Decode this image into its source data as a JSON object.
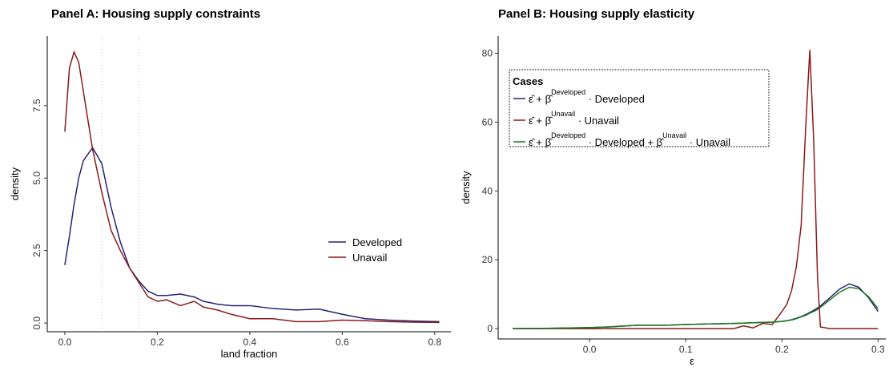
{
  "chart_data": [
    {
      "type": "line",
      "title": "Panel A: Housing supply constraints",
      "x_label": "land fraction",
      "y_label": "density",
      "x": [
        0,
        0.01,
        0.02,
        0.03,
        0.04,
        0.06,
        0.08,
        0.1,
        0.12,
        0.14,
        0.16,
        0.18,
        0.2,
        0.22,
        0.25,
        0.28,
        0.3,
        0.33,
        0.36,
        0.4,
        0.45,
        0.5,
        0.55,
        0.6,
        0.65,
        0.7,
        0.75,
        0.81
      ],
      "series": [
        {
          "name": "Developed",
          "color": "#23237a",
          "values": [
            2.0,
            3.0,
            4.1,
            5.0,
            5.6,
            6.05,
            5.5,
            4.0,
            2.8,
            1.9,
            1.45,
            1.1,
            0.95,
            0.95,
            1.0,
            0.9,
            0.75,
            0.65,
            0.6,
            0.6,
            0.5,
            0.45,
            0.48,
            0.3,
            0.15,
            0.1,
            0.07,
            0.05
          ]
        },
        {
          "name": "Unavail",
          "color": "#8b1a1a",
          "values": [
            6.6,
            8.8,
            9.35,
            9.0,
            8.0,
            6.0,
            4.5,
            3.2,
            2.5,
            1.9,
            1.4,
            0.9,
            0.75,
            0.8,
            0.6,
            0.75,
            0.55,
            0.45,
            0.3,
            0.15,
            0.15,
            0.05,
            0.05,
            0.1,
            0.08,
            0.05,
            0.03,
            0.02
          ]
        }
      ],
      "vlines": [
        0.08,
        0.16
      ],
      "xlim": [
        -0.038,
        0.835
      ],
      "ylim": [
        -0.3,
        9.9
      ],
      "xticks": [
        {
          "value": 0,
          "label": "0.0"
        },
        0.2,
        0.4,
        0.6,
        0.8
      ],
      "yticks": [
        {
          "value": 0,
          "label": "0.0"
        },
        2.5,
        {
          "value": 5,
          "label": "5.0"
        },
        7.5
      ],
      "ytick_labels_rotated": true,
      "legend": "right"
    },
    {
      "type": "line",
      "title": "Panel B: Housing supply elasticity",
      "x_label": "ε",
      "y_label": "density",
      "legend_title": "Cases",
      "x": [
        -0.08,
        -0.05,
        -0.02,
        0,
        0.02,
        0.05,
        0.08,
        0.1,
        0.13,
        0.15,
        0.16,
        0.17,
        0.18,
        0.19,
        0.2,
        0.205,
        0.21,
        0.215,
        0.22,
        0.225,
        0.229,
        0.233,
        0.237,
        0.24,
        0.25,
        0.26,
        0.27,
        0.28,
        0.29,
        0.3
      ],
      "series": [
        {
          "name": [
            {
              "text": "ε̂ + β̂"
            },
            {
              "sup": "Developed"
            },
            {
              "text": " · Developed"
            }
          ],
          "color": "#23237a",
          "values": [
            0,
            0.05,
            0.2,
            0.3,
            0.5,
            1.0,
            1.0,
            1.2,
            1.4,
            1.5,
            1.6,
            1.7,
            1.8,
            1.9,
            2.1,
            2.3,
            2.6,
            3.0,
            3.5,
            4.1,
            4.7,
            5.3,
            6.0,
            6.6,
            9.0,
            11.5,
            13.0,
            12.0,
            9.0,
            5.0
          ]
        },
        {
          "name": [
            {
              "text": "ε̂ + β̂"
            },
            {
              "sup": "Unavail"
            },
            {
              "text": " · Unavail"
            }
          ],
          "color": "#8b1a1a",
          "values": [
            0,
            0,
            0,
            0,
            0,
            0,
            0,
            0,
            0,
            0,
            0.8,
            0.2,
            1.5,
            1.2,
            5,
            7,
            11,
            18,
            30,
            60,
            81,
            55,
            15,
            0.5,
            0,
            0,
            0,
            0,
            0,
            0
          ]
        },
        {
          "name": [
            {
              "text": "ε̂ + β̂"
            },
            {
              "sup": "Developed"
            },
            {
              "text": " · Developed + β̂"
            },
            {
              "sup": "Unavail"
            },
            {
              "text": " · Unavail"
            }
          ],
          "color": "#1a7a1a",
          "values": [
            0,
            0.05,
            0.2,
            0.3,
            0.5,
            1.0,
            1.0,
            1.2,
            1.4,
            1.5,
            1.6,
            1.7,
            1.8,
            1.9,
            2.1,
            2.3,
            2.5,
            2.9,
            3.4,
            3.9,
            4.5,
            5.0,
            5.6,
            6.2,
            8.4,
            10.6,
            12.0,
            11.6,
            9.3,
            5.8
          ]
        }
      ],
      "xlim": [
        -0.095,
        0.308
      ],
      "ylim": [
        -3,
        85
      ],
      "xticks": [
        {
          "value": 0,
          "label": "0.0"
        },
        0.1,
        0.2,
        0.3
      ],
      "yticks": [
        0,
        20,
        40,
        60,
        80
      ],
      "ytick_labels_rotated": false,
      "legend": "top-left"
    }
  ]
}
